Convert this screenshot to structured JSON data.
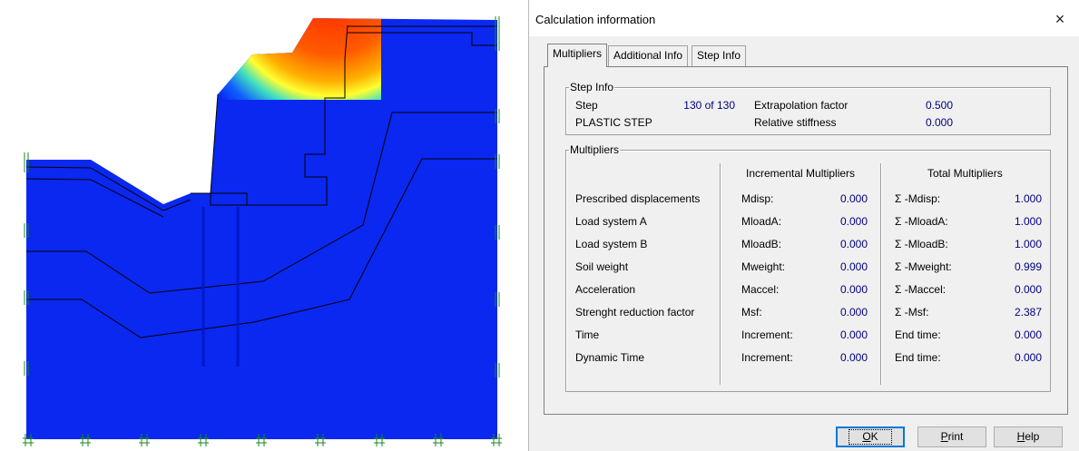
{
  "dialog": {
    "title": "Calculation information",
    "close_symbol": "×",
    "tabs": [
      "Multipliers",
      "Additional Info",
      "Step Info"
    ],
    "active_tab": "Multipliers"
  },
  "step_info": {
    "legend": "Step Info",
    "step_label": "Step",
    "step_value": "130 of 130",
    "step_type": "PLASTIC STEP",
    "extrapolation_label": "Extrapolation factor",
    "extrapolation_value": "0.500",
    "relative_stiffness_label": "Relative stiffness",
    "relative_stiffness_value": "0.000"
  },
  "multipliers": {
    "legend": "Multipliers",
    "incremental_header": "Incremental Multipliers",
    "total_header": "Total Multipliers",
    "rows": [
      {
        "name": "Prescribed displacements",
        "inc_label": "Mdisp:",
        "inc_value": "0.000",
        "tot_label": "Σ -Mdisp:",
        "tot_value": "1.000"
      },
      {
        "name": "Load system A",
        "inc_label": "MloadA:",
        "inc_value": "0.000",
        "tot_label": "Σ -MloadA:",
        "tot_value": "1.000"
      },
      {
        "name": "Load system B",
        "inc_label": "MloadB:",
        "inc_value": "0.000",
        "tot_label": "Σ -MloadB:",
        "tot_value": "1.000"
      },
      {
        "name": "Soil weight",
        "inc_label": "Mweight:",
        "inc_value": "0.000",
        "tot_label": "Σ -Mweight:",
        "tot_value": "0.999"
      },
      {
        "name": "Acceleration",
        "inc_label": "Maccel:",
        "inc_value": "0.000",
        "tot_label": "Σ -Maccel:",
        "tot_value": "0.000"
      },
      {
        "name": "Strenght reduction factor",
        "inc_label": "Msf:",
        "inc_value": "0.000",
        "tot_label": "Σ -Msf:",
        "tot_value": "2.387"
      },
      {
        "name": "Time",
        "inc_label": "Increment:",
        "inc_value": "0.000",
        "tot_label": "End time:",
        "tot_value": "0.000"
      },
      {
        "name": "Dynamic Time",
        "inc_label": "Increment:",
        "inc_value": "0.000",
        "tot_label": "End time:",
        "tot_value": "0.000"
      }
    ]
  },
  "buttons": {
    "ok": "OK",
    "print": "Print",
    "help": "Help"
  },
  "colors": {
    "soil": "#0a28f0",
    "hot": "#ff2a00",
    "fixity": "#1a8a1a",
    "dialog_value": "#000080"
  }
}
